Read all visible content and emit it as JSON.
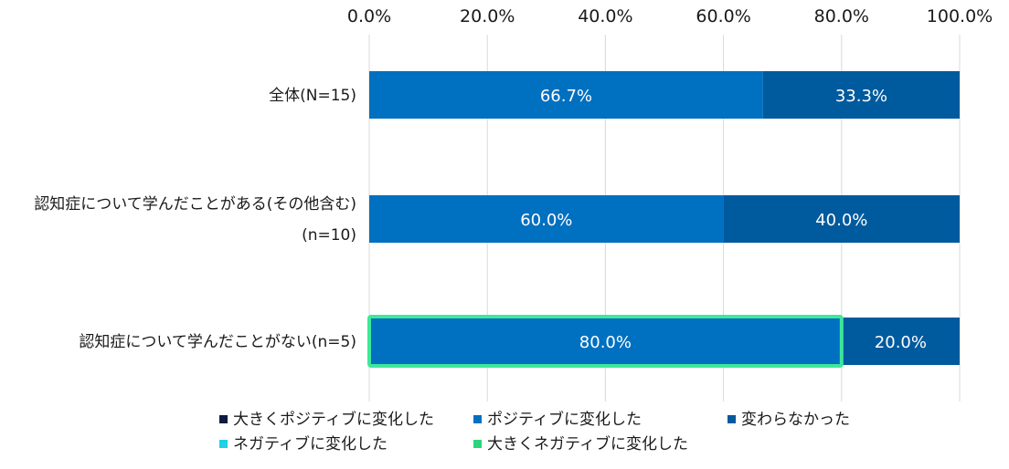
{
  "chart_data": {
    "type": "bar",
    "orientation": "horizontal",
    "stacked": true,
    "xlim": [
      0,
      100
    ],
    "ticks": [
      0,
      20,
      40,
      60,
      80,
      100
    ],
    "tick_labels": [
      "0.0%",
      "20.0%",
      "40.0%",
      "60.0%",
      "80.0%",
      "100.0%"
    ],
    "categories": [
      [
        "全体(N=15)"
      ],
      [
        "認知症について学んだことがある(その他含む)",
        "(n=10)"
      ],
      [
        "認知症について学んだことがない(n=5)"
      ]
    ],
    "series": [
      {
        "name": "大きくポジティブに変化した",
        "color": "#0d1b3e",
        "values": [
          0,
          0,
          0
        ]
      },
      {
        "name": "ポジティブに変化した",
        "color": "#0070c0",
        "values": [
          66.7,
          60.0,
          80.0
        ]
      },
      {
        "name": "変わらなかった",
        "color": "#005a9e",
        "values": [
          33.3,
          40.0,
          20.0
        ]
      },
      {
        "name": "ネガティブに変化した",
        "color": "#1fd0e6",
        "values": [
          0,
          0,
          0
        ]
      },
      {
        "name": "大きくネガティブに変化した",
        "color": "#2ed47a",
        "values": [
          0,
          0,
          0
        ]
      }
    ],
    "value_labels": [
      [
        "",
        "66.7%",
        "33.3%",
        "",
        ""
      ],
      [
        "",
        "60.0%",
        "40.0%",
        "",
        ""
      ],
      [
        "",
        "80.0%",
        "20.0%",
        "",
        ""
      ]
    ],
    "highlight": {
      "category_index": 2,
      "series_index": 1,
      "color": "#3de89a"
    },
    "grid": true,
    "legend_position": "bottom"
  }
}
